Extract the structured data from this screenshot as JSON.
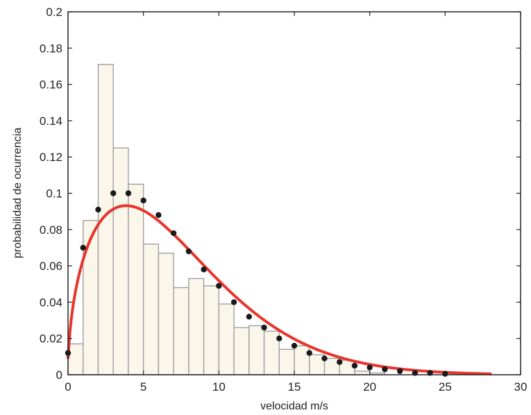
{
  "chart_data": {
    "type": "bar",
    "title": "",
    "xlabel": "velocidad m/s",
    "ylabel": "probabilidad de ocurrencia",
    "xlim": [
      0,
      30
    ],
    "ylim": [
      0,
      0.2
    ],
    "x_ticks": [
      0,
      5,
      10,
      15,
      20,
      25,
      30
    ],
    "y_ticks": [
      0,
      0.02,
      0.04,
      0.06,
      0.08,
      0.1,
      0.12,
      0.14,
      0.16,
      0.18,
      0.2
    ],
    "x_tick_labels": [
      "0",
      "5",
      "10",
      "15",
      "20",
      "25",
      "30"
    ],
    "y_tick_labels": [
      "0",
      "0.02",
      "0.04",
      "0.06",
      "0.08",
      "0.1",
      "0.12",
      "0.14",
      "0.16",
      "0.18",
      "0.2"
    ],
    "grid": false,
    "histogram": {
      "bin_width": 1,
      "bin_starts": [
        0,
        1,
        2,
        3,
        4,
        5,
        6,
        7,
        8,
        9,
        10,
        11,
        12,
        13,
        14,
        15,
        16,
        17,
        18,
        19,
        20
      ],
      "values": [
        0.017,
        0.085,
        0.171,
        0.125,
        0.105,
        0.072,
        0.067,
        0.048,
        0.053,
        0.049,
        0.039,
        0.026,
        0.027,
        0.024,
        0.014,
        0.016,
        0.011,
        0.009,
        0.008,
        0.002,
        0.001
      ],
      "fill_color": "#fbf6ea",
      "edge_color": "#999999"
    },
    "fit_curve": {
      "type": "weibull",
      "k": 1.5,
      "c": 8.0,
      "x_range": [
        0,
        28
      ],
      "color": "#e8342c"
    },
    "markers": {
      "x": [
        0,
        1,
        2,
        3,
        4,
        5,
        6,
        7,
        8,
        9,
        10,
        11,
        12,
        13,
        14,
        15,
        16,
        17,
        18,
        19,
        20,
        21,
        22,
        23,
        24,
        25
      ],
      "y": [
        0.012,
        0.07,
        0.091,
        0.1,
        0.1,
        0.096,
        0.088,
        0.078,
        0.068,
        0.058,
        0.049,
        0.04,
        0.032,
        0.026,
        0.02,
        0.016,
        0.012,
        0.009,
        0.007,
        0.005,
        0.004,
        0.003,
        0.002,
        0.001,
        0.001,
        0.0005
      ],
      "color": "#1a1a1a"
    }
  }
}
